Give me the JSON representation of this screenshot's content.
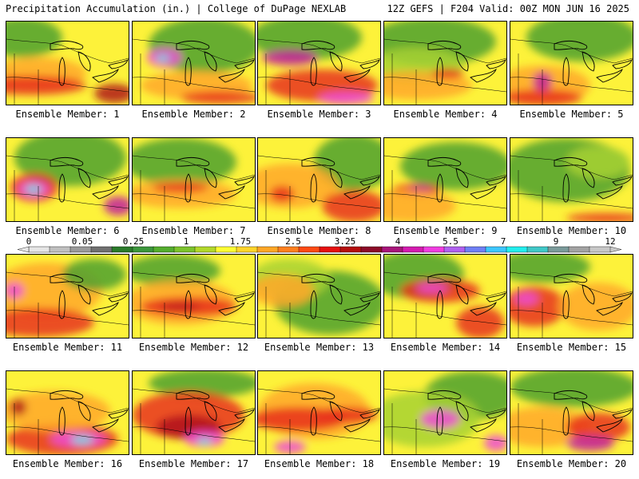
{
  "header": {
    "left": "Precipitation Accumulation (in.) | College of DuPage NEXLAB",
    "right": "12Z GEFS | F204 Valid: 00Z MON JUN 16 2025"
  },
  "panels": [
    {
      "label": "Ensemble Member: 1"
    },
    {
      "label": "Ensemble Member: 2"
    },
    {
      "label": "Ensemble Member: 3"
    },
    {
      "label": "Ensemble Member: 4"
    },
    {
      "label": "Ensemble Member: 5"
    },
    {
      "label": "Ensemble Member: 6"
    },
    {
      "label": "Ensemble Member: 7"
    },
    {
      "label": "Ensemble Member: 8"
    },
    {
      "label": "Ensemble Member: 9"
    },
    {
      "label": "Ensemble Member: 10"
    },
    {
      "label": "Ensemble Member: 11"
    },
    {
      "label": "Ensemble Member: 12"
    },
    {
      "label": "Ensemble Member: 13"
    },
    {
      "label": "Ensemble Member: 14"
    },
    {
      "label": "Ensemble Member: 15"
    },
    {
      "label": "Ensemble Member: 16"
    },
    {
      "label": "Ensemble Member: 17"
    },
    {
      "label": "Ensemble Member: 18"
    },
    {
      "label": "Ensemble Member: 19"
    },
    {
      "label": "Ensemble Member: 20"
    }
  ],
  "colorbar": {
    "ticks": [
      "0",
      "0.05",
      "0.25",
      "1",
      "1.75",
      "2.5",
      "3.25",
      "4",
      "5.5",
      "7",
      "9",
      "12"
    ],
    "colors": [
      "#e6e6e6",
      "#c0c0c0",
      "#9a9a9a",
      "#707070",
      "#2a7a2a",
      "#3b963b",
      "#54ad2e",
      "#7cc32c",
      "#b2d82a",
      "#ffff33",
      "#ffd52a",
      "#ffa726",
      "#ff7f1e",
      "#ff4a14",
      "#e60f0f",
      "#b50d0d",
      "#8c0a28",
      "#a8157a",
      "#d41bb0",
      "#f03ce0",
      "#b060f0",
      "#6f7ff5",
      "#3dc7ff",
      "#22eeee",
      "#40c8c8",
      "#7a9a9a",
      "#a3a3a3",
      "#c8c8c8"
    ]
  },
  "palette": {
    "green_dark": "#2f7d2f",
    "green": "#4ea12e",
    "lime": "#a7d234",
    "yellow": "#fdf23a",
    "orange": "#ffa82b",
    "red": "#e8321c",
    "darkred": "#b0141b",
    "magenta": "#c21d9d",
    "pink": "#ef4bd8",
    "cyan": "#4fe8e8"
  }
}
